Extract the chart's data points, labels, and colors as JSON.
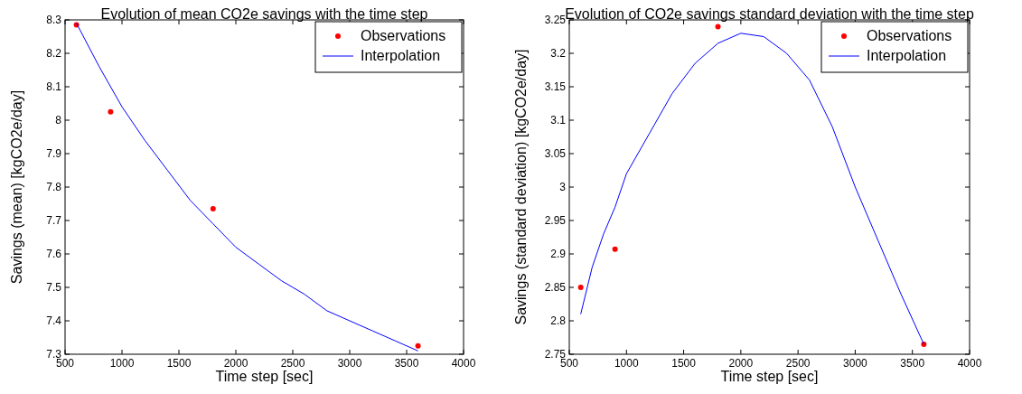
{
  "chart_data": [
    {
      "type": "scatter",
      "title": "Evolution of mean CO2e savings with the time step",
      "xlabel": "Time step [sec]",
      "ylabel": "Savings (mean) [kgCO2e/day]",
      "xlim": [
        500,
        4000
      ],
      "xticks": [
        500,
        1000,
        1500,
        2000,
        2500,
        3000,
        3500,
        4000
      ],
      "ylim": [
        7.3,
        8.3
      ],
      "yticks": [
        7.3,
        7.4,
        7.5,
        7.6,
        7.7,
        7.8,
        7.9,
        8,
        8.1,
        8.2,
        8.3
      ],
      "grid": false,
      "legend": "top right",
      "series": [
        {
          "name": "Observations",
          "type": "scatter",
          "color": "#ff0000",
          "marker": "circle",
          "x": [
            600,
            900,
            1800,
            3600
          ],
          "values": [
            8.285,
            8.025,
            7.735,
            7.325
          ]
        },
        {
          "name": "Interpolation",
          "type": "line",
          "color": "#0000ff",
          "line_style": "solid",
          "x": [
            600,
            800,
            1000,
            1200,
            1400,
            1600,
            1800,
            2000,
            2200,
            2400,
            2600,
            2800,
            3000,
            3200,
            3400,
            3600
          ],
          "values": [
            8.29,
            8.16,
            8.04,
            7.94,
            7.85,
            7.76,
            7.69,
            7.62,
            7.57,
            7.52,
            7.48,
            7.43,
            7.4,
            7.37,
            7.34,
            7.31
          ]
        }
      ]
    },
    {
      "type": "scatter",
      "title": "Evolution of CO2e savings standard deviation with the time step",
      "xlabel": "Time step [sec]",
      "ylabel": "Savings (standard deviation) [kgCO2e/day]",
      "xlim": [
        500,
        4000
      ],
      "xticks": [
        500,
        1000,
        1500,
        2000,
        2500,
        3000,
        3500,
        4000
      ],
      "ylim": [
        2.75,
        3.25
      ],
      "yticks": [
        2.75,
        2.8,
        2.85,
        2.9,
        2.95,
        3,
        3.05,
        3.1,
        3.15,
        3.2,
        3.25
      ],
      "grid": false,
      "legend": "top right",
      "series": [
        {
          "name": "Observations",
          "type": "scatter",
          "color": "#ff0000",
          "marker": "circle",
          "x": [
            600,
            900,
            1800,
            3600
          ],
          "values": [
            2.85,
            2.907,
            3.24,
            2.765
          ]
        },
        {
          "name": "Interpolation",
          "type": "line",
          "color": "#0000ff",
          "line_style": "solid",
          "x": [
            600,
            700,
            800,
            900,
            1000,
            1200,
            1400,
            1600,
            1800,
            2000,
            2200,
            2400,
            2600,
            2800,
            3000,
            3200,
            3400,
            3600
          ],
          "values": [
            2.81,
            2.88,
            2.93,
            2.97,
            3.02,
            3.08,
            3.14,
            3.185,
            3.215,
            3.23,
            3.225,
            3.2,
            3.16,
            3.09,
            3.0,
            2.92,
            2.84,
            2.765
          ]
        }
      ]
    }
  ]
}
